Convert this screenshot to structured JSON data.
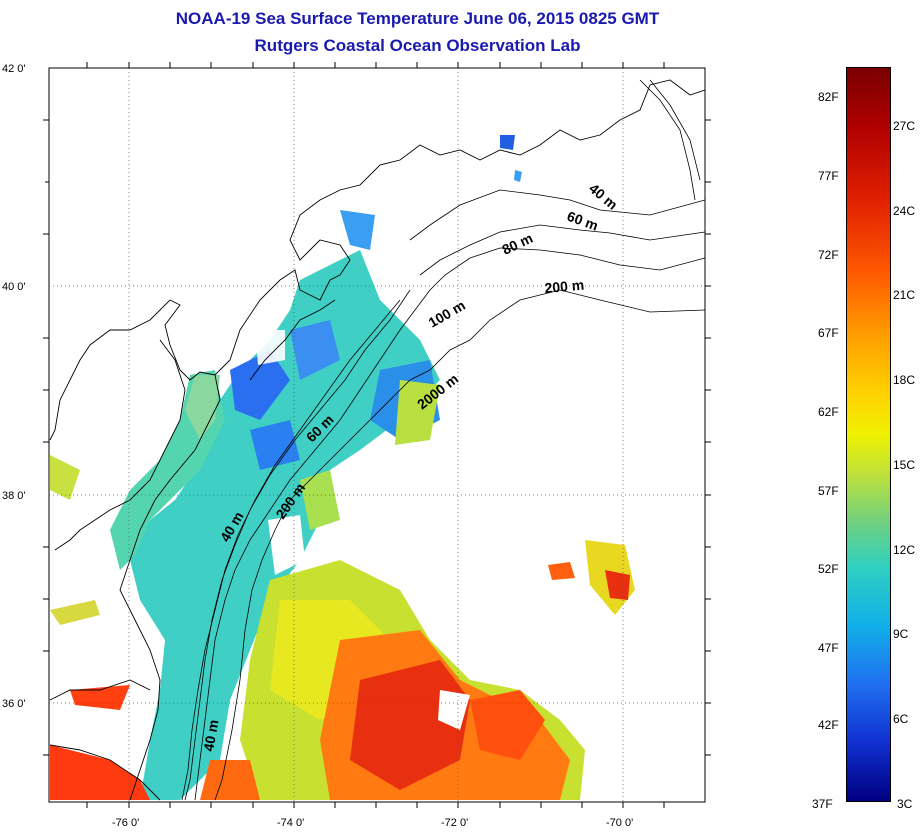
{
  "title_line1": "NOAA-19 Sea Surface Temperature June 06, 2015 0825 GMT",
  "title_line2": "Rutgers Coastal Ocean Observation Lab",
  "map": {
    "lat_labels": [
      "42 0'",
      "40 0'",
      "38 0'",
      "36 0'"
    ],
    "lon_labels": [
      "-76 0'",
      "-74 0'",
      "-72 0'",
      "-70 0'"
    ],
    "contour_labels": [
      "40 m",
      "60 m",
      "80 m",
      "200 m",
      "100 m",
      "2000 m",
      "60 m",
      "200 m",
      "40 m",
      "40 m"
    ]
  },
  "colorbar": {
    "fahrenheit": [
      "82F",
      "77F",
      "72F",
      "67F",
      "62F",
      "57F",
      "52F",
      "47F",
      "42F",
      "37F"
    ],
    "celsius": [
      "27C",
      "24C",
      "21C",
      "18C",
      "15C",
      "12C",
      "9C",
      "6C",
      "3C"
    ]
  },
  "colors": {
    "title": "#1a1ab0",
    "coastline": "#000000"
  }
}
